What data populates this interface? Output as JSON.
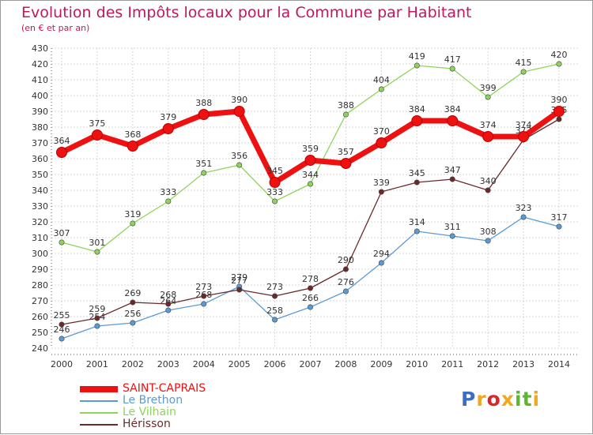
{
  "header": {
    "title": "Evolution des Impôts locaux pour la Commune par Habitant",
    "subtitle": "(en € et par an)"
  },
  "logo": {
    "text": "Proxiti",
    "colors": [
      "#3b6fc7",
      "#f2a81c",
      "#d8262a",
      "#f2a81c",
      "#5bb82e",
      "#5bb82e",
      "#f2a81c"
    ]
  },
  "chart_data": {
    "type": "line",
    "title": "Evolution des Impôts locaux pour la Commune par Habitant",
    "subtitle": "(en € et par an)",
    "ylim": [
      240,
      430
    ],
    "y_ticks": [
      240,
      250,
      260,
      270,
      280,
      290,
      300,
      310,
      320,
      330,
      340,
      350,
      360,
      370,
      380,
      390,
      400,
      410,
      420,
      430
    ],
    "x": [
      "2000",
      "2001",
      "2002",
      "2003",
      "2004",
      "2005",
      "2006",
      "2007",
      "2008",
      "2009",
      "2010",
      "2011",
      "2012",
      "2013",
      "2014"
    ],
    "grid": true,
    "legend": "bottom-left",
    "series": [
      {
        "name": "Le Brethon",
        "color": "#5b9bd5",
        "values": [
          246,
          254,
          256,
          264,
          268,
          279,
          258,
          266,
          276,
          294,
          314,
          311,
          308,
          323,
          317
        ]
      },
      {
        "name": "Le Vilhain",
        "color": "#8ed45a",
        "values": [
          307,
          301,
          319,
          333,
          351,
          356,
          333,
          344,
          388,
          404,
          419,
          417,
          399,
          415,
          420
        ]
      },
      {
        "name": "Hérisson",
        "color": "#6b2a2a",
        "values": [
          255,
          259,
          269,
          268,
          273,
          277,
          273,
          278,
          290,
          339,
          345,
          347,
          340,
          372,
          385
        ]
      },
      {
        "name": "SAINT-CAPRAIS",
        "color": "#ee1111",
        "values": [
          364,
          375,
          368,
          379,
          388,
          390,
          345,
          359,
          357,
          370,
          384,
          384,
          374,
          374,
          390
        ]
      }
    ],
    "legend_order": [
      "SAINT-CAPRAIS",
      "Le Brethon",
      "Le Vilhain",
      "Hérisson"
    ]
  }
}
